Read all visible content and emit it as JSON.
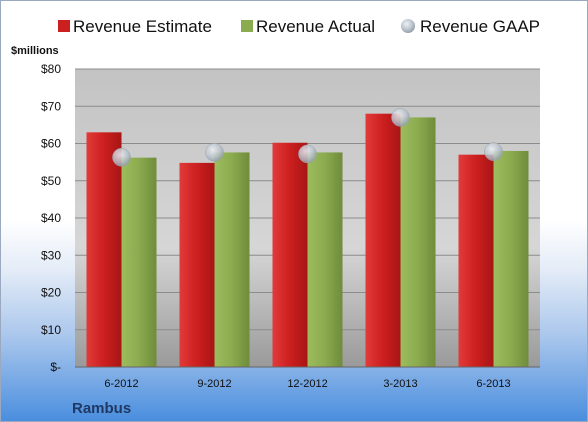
{
  "chart_data": {
    "type": "bar",
    "unit_label": "$millions",
    "company": "Rambus",
    "categories": [
      "6-2012",
      "9-2012",
      "12-2012",
      "3-2013",
      "6-2013"
    ],
    "series": [
      {
        "name": "Revenue Estimate",
        "kind": "bar",
        "color": "#cc1f1f",
        "values": [
          63,
          54.8,
          60.2,
          68,
          57
        ]
      },
      {
        "name": "Revenue Actual",
        "kind": "bar",
        "color": "#8bab4f",
        "values": [
          56.2,
          57.6,
          57.6,
          67,
          58
        ]
      },
      {
        "name": "Revenue GAAP",
        "kind": "marker",
        "color": "#b9c2cc",
        "values": [
          56.3,
          57.6,
          57.2,
          67,
          57.8
        ]
      }
    ],
    "y_ticks": [
      "$-",
      "$10",
      "$20",
      "$30",
      "$40",
      "$50",
      "$60",
      "$70",
      "$80"
    ],
    "ylim": [
      0,
      80
    ],
    "grid": true,
    "legend_position": "top"
  }
}
